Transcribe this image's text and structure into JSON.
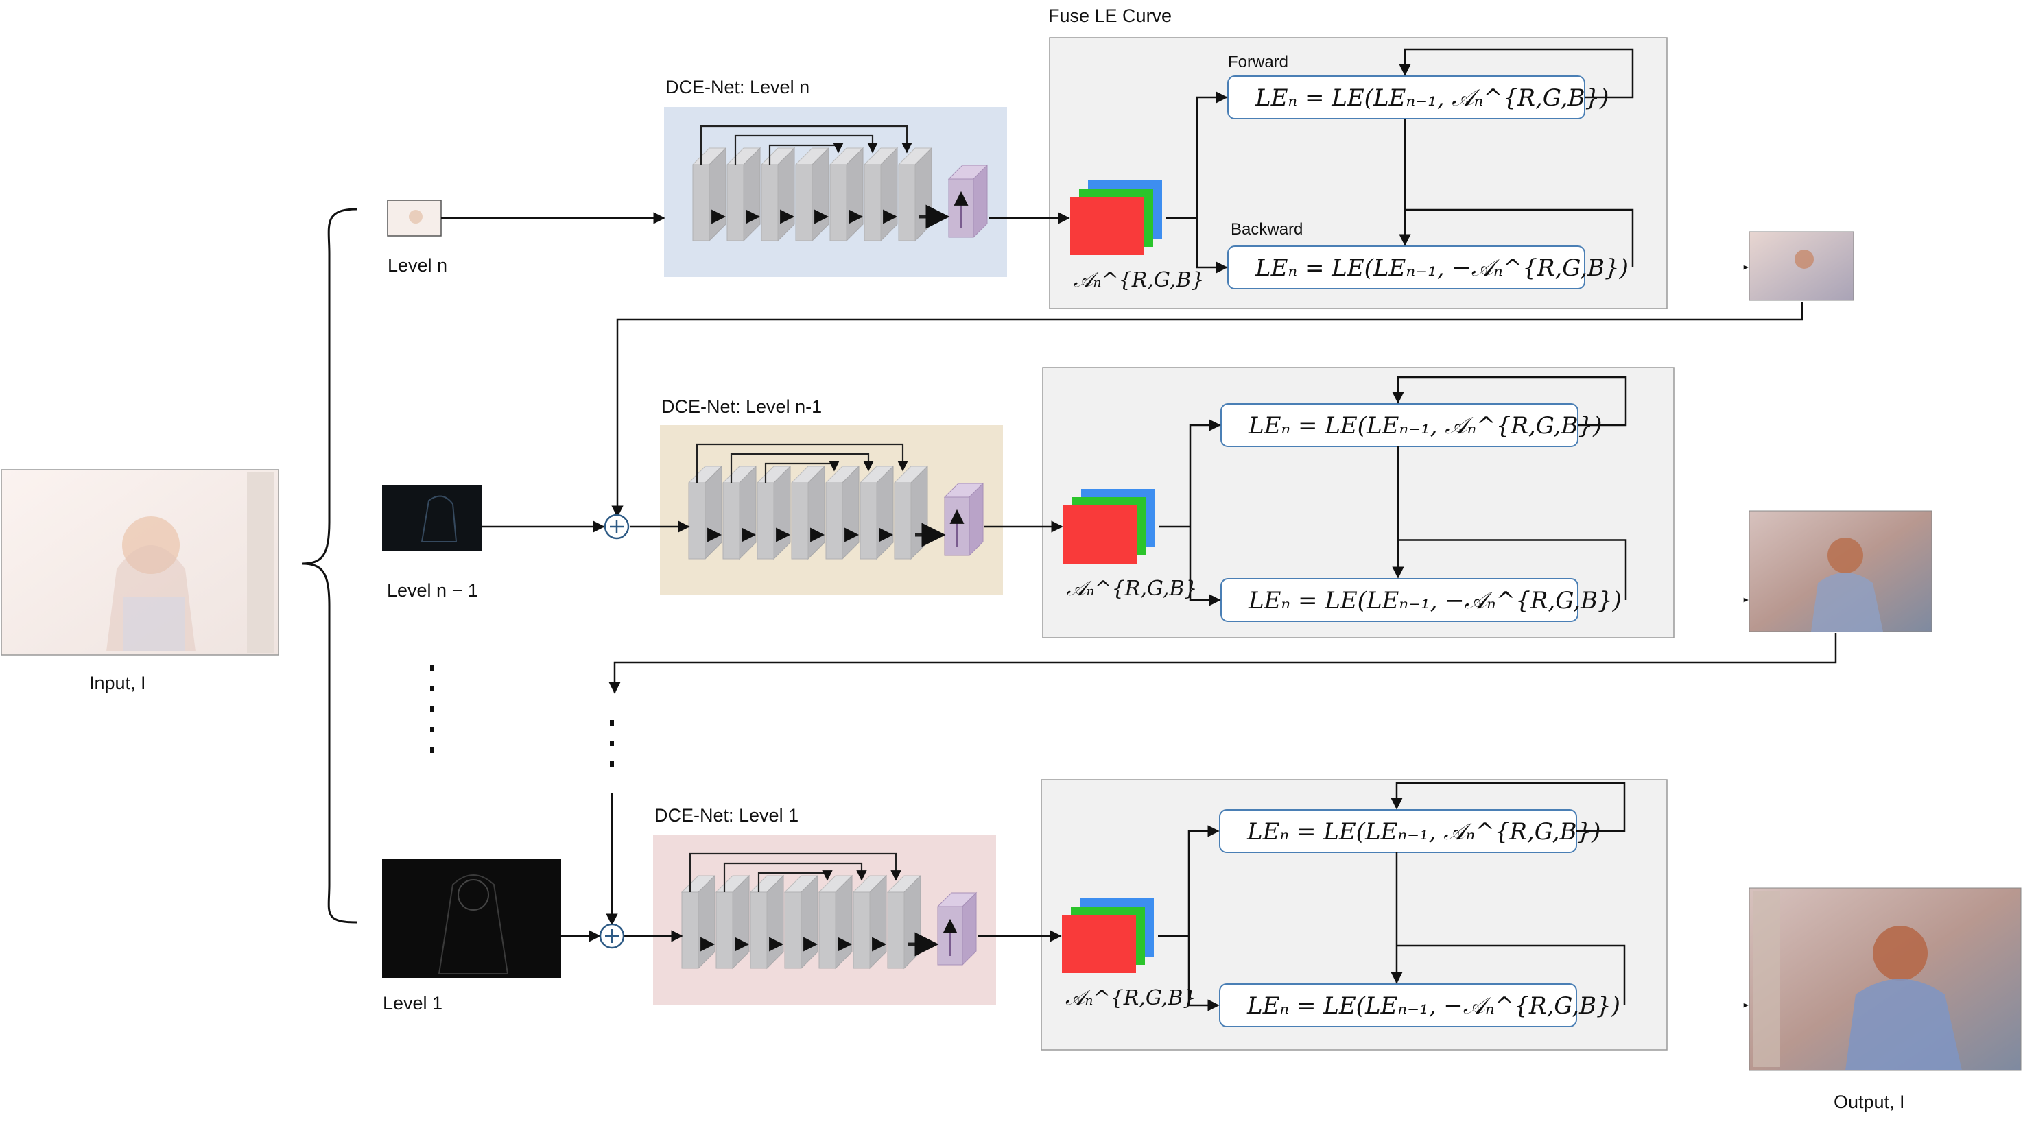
{
  "input_label": "Input, I",
  "output_label": "Output, I",
  "fuse_title": "Fuse LE Curve",
  "forward_label": "Forward",
  "backward_label": "Backward",
  "dots_note": "",
  "levels": [
    {
      "id": "level-n",
      "level_label": "Level n",
      "net_label": "DCE-Net: Level n",
      "net_color": "#dae3f0",
      "forward_eq": "LEₙ = LE(LEₙ₋₁, 𝒜ₙ^{R,G,B})",
      "backward_eq": "LEₙ = LE(LEₙ₋₁, −𝒜ₙ^{R,G,B})",
      "alpha_label": "𝒜ₙ^{R,G,B}"
    },
    {
      "id": "level-n-1",
      "level_label": "Level n − 1",
      "net_label": "DCE-Net: Level n-1",
      "net_color": "#efe5d1",
      "forward_eq": "LEₙ = LE(LEₙ₋₁, 𝒜ₙ^{R,G,B})",
      "backward_eq": "LEₙ = LE(LEₙ₋₁, −𝒜ₙ^{R,G,B})",
      "alpha_label": "𝒜ₙ^{R,G,B}"
    },
    {
      "id": "level-1",
      "level_label": "Level 1",
      "net_label": "DCE-Net: Level 1",
      "net_color": "#f0dcdc",
      "forward_eq": "LEₙ = LE(LEₙ₋₁, 𝒜ₙ^{R,G,B})",
      "backward_eq": "LEₙ = LE(LEₙ₋₁, −𝒜ₙ^{R,G,B})",
      "alpha_label": "𝒜ₙ^{R,G,B}"
    }
  ],
  "colors": {
    "curve_red": "#f93a3a",
    "curve_green": "#2bc42b",
    "curve_blue": "#3d8ef0",
    "eq_border": "#4a7fb5",
    "fuse_bg": "#f1f1f1",
    "block": "#c7c7c9",
    "upsample": "#c9b8d4"
  }
}
